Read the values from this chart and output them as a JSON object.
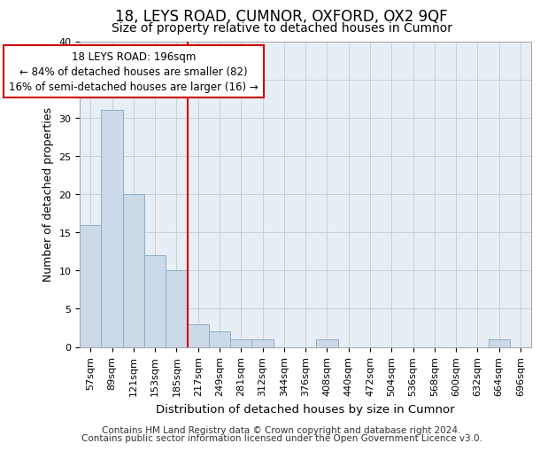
{
  "title": "18, LEYS ROAD, CUMNOR, OXFORD, OX2 9QF",
  "subtitle": "Size of property relative to detached houses in Cumnor",
  "xlabel": "Distribution of detached houses by size in Cumnor",
  "ylabel": "Number of detached properties",
  "bar_labels": [
    "57sqm",
    "89sqm",
    "121sqm",
    "153sqm",
    "185sqm",
    "217sqm",
    "249sqm",
    "281sqm",
    "312sqm",
    "344sqm",
    "376sqm",
    "408sqm",
    "440sqm",
    "472sqm",
    "504sqm",
    "536sqm",
    "568sqm",
    "600sqm",
    "632sqm",
    "664sqm",
    "696sqm"
  ],
  "bar_values": [
    16,
    31,
    20,
    12,
    10,
    3,
    2,
    1,
    1,
    0,
    0,
    1,
    0,
    0,
    0,
    0,
    0,
    0,
    0,
    1,
    0
  ],
  "bar_color": "#ccd9e8",
  "bar_edgecolor": "#8aaece",
  "grid_color": "#c8d0d8",
  "background_color": "#e8eef5",
  "annotation_line1": "18 LEYS ROAD: 196sqm",
  "annotation_line2": "← 84% of detached houses are smaller (82)",
  "annotation_line3": "16% of semi-detached houses are larger (16) →",
  "annotation_box_facecolor": "#ffffff",
  "annotation_box_edgecolor": "#cc0000",
  "ref_line_x": 4.5,
  "ref_line_color": "#cc0000",
  "ylim": [
    0,
    40
  ],
  "yticks": [
    0,
    5,
    10,
    15,
    20,
    25,
    30,
    35,
    40
  ],
  "footer_line1": "Contains HM Land Registry data © Crown copyright and database right 2024.",
  "footer_line2": "Contains public sector information licensed under the Open Government Licence v3.0.",
  "title_fontsize": 12,
  "subtitle_fontsize": 10,
  "xlabel_fontsize": 9.5,
  "ylabel_fontsize": 9,
  "tick_fontsize": 8,
  "annotation_fontsize": 8.5,
  "footer_fontsize": 7.5
}
